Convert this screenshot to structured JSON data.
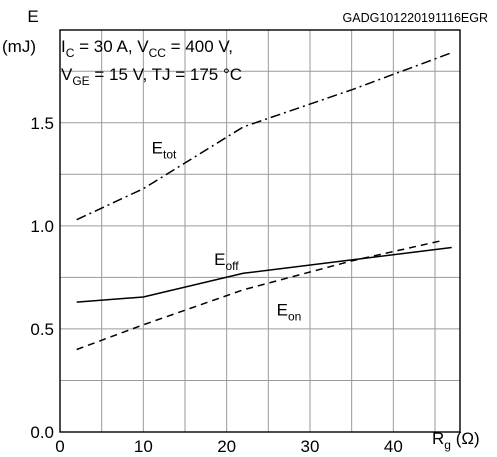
{
  "chart_data": {
    "type": "line",
    "figure_id": "GADG101220191116EGR",
    "ylabel_line1": "E",
    "ylabel_line2": "(mJ)",
    "conditions": {
      "line1": {
        "i": "I",
        "i_sub": "C",
        "mid": " = 30 A, V",
        "v_sub": "CC",
        "end": " = 400 V,"
      },
      "line2": {
        "v": "V",
        "v_sub": "GE",
        "end": " = 15 V, TJ = 175 °C"
      }
    },
    "xlabel": {
      "main": "R",
      "sub": "g",
      "unit": " (Ω)"
    },
    "xlim": [
      0,
      48
    ],
    "ylim": [
      0.0,
      1.95
    ],
    "x_ticks": [
      0,
      10,
      20,
      30,
      40
    ],
    "y_ticks": [
      0.0,
      0.5,
      1.0,
      1.5
    ],
    "x_tick_labels": [
      "0",
      "10",
      "20",
      "30",
      "40"
    ],
    "y_tick_labels": [
      "0.0",
      "0.5",
      "1.0",
      "1.5"
    ],
    "x_grid_step": 5,
    "y_grid_step": 0.25,
    "grid": true,
    "series": [
      {
        "name": "E_tot",
        "label_main": "E",
        "label_sub": "tot",
        "style": "dashdot",
        "label_at": [
          11,
          1.35
        ],
        "x": [
          2,
          10,
          22,
          35,
          47
        ],
        "y": [
          1.03,
          1.18,
          1.48,
          1.66,
          1.84
        ]
      },
      {
        "name": "E_off",
        "label_main": "E",
        "label_sub": "off",
        "style": "solid",
        "label_at": [
          18.5,
          0.81
        ],
        "x": [
          2,
          10,
          22,
          35,
          47
        ],
        "y": [
          0.63,
          0.655,
          0.77,
          0.835,
          0.895
        ]
      },
      {
        "name": "E_on",
        "label_main": "E",
        "label_sub": "on",
        "style": "dashed",
        "label_at": [
          26,
          0.565
        ],
        "x": [
          2,
          10,
          22,
          35,
          46
        ],
        "y": [
          0.4,
          0.52,
          0.69,
          0.83,
          0.93
        ]
      }
    ]
  }
}
